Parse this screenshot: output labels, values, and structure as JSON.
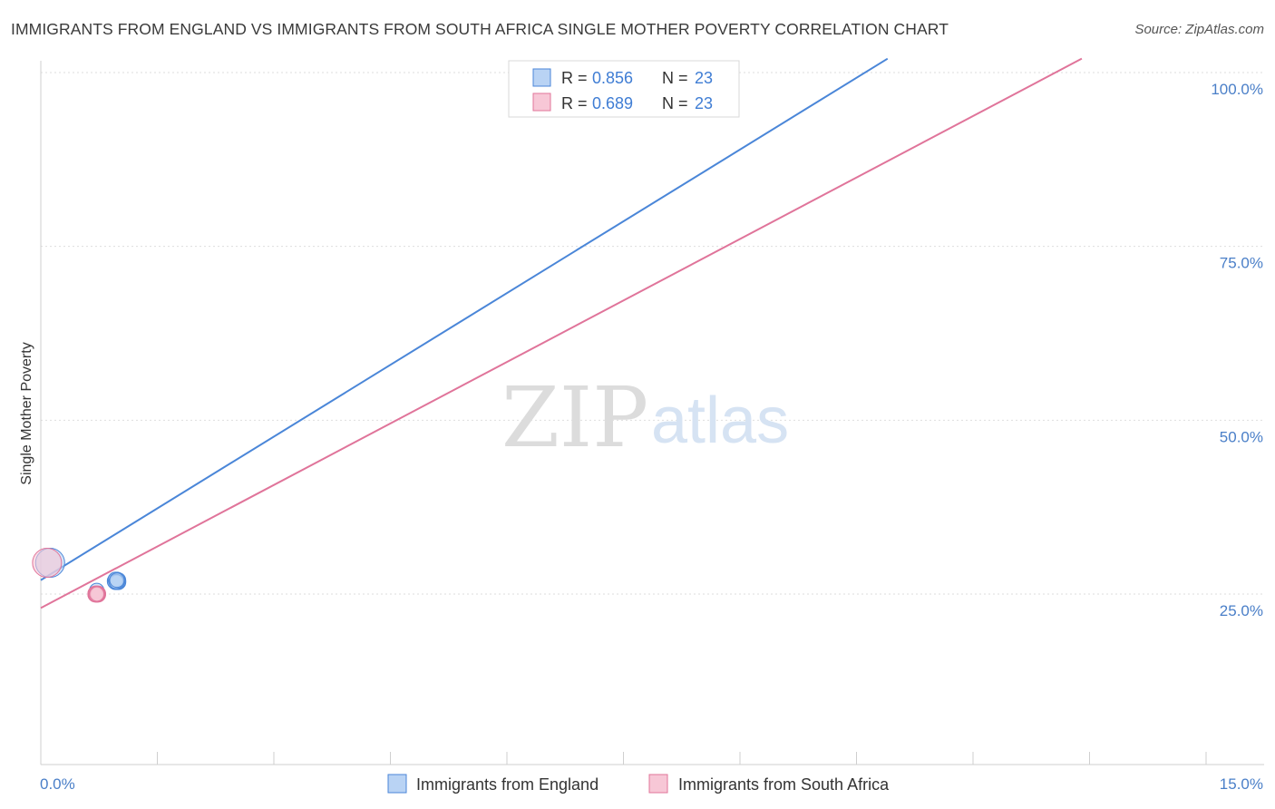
{
  "title": "IMMIGRANTS FROM ENGLAND VS IMMIGRANTS FROM SOUTH AFRICA SINGLE MOTHER POVERTY CORRELATION CHART",
  "source": "Source: ZipAtlas.com",
  "watermark": {
    "zip": "ZIP",
    "atlas": "atlas"
  },
  "chart_data": {
    "type": "scatter",
    "title": "IMMIGRANTS FROM ENGLAND VS IMMIGRANTS FROM SOUTH AFRICA SINGLE MOTHER POVERTY CORRELATION CHART",
    "ylabel": "Single Mother Poverty",
    "xlabel": "",
    "xlim": [
      0,
      15
    ],
    "ylim": [
      0,
      103
    ],
    "x_tick_labels": [
      "0.0%",
      "15.0%"
    ],
    "y_ticks": [
      25,
      50,
      75,
      100
    ],
    "y_tick_labels": [
      "25.0%",
      "50.0%",
      "75.0%",
      "100.0%"
    ],
    "grid": true,
    "legend_placement": "top-center",
    "series": [
      {
        "name": "Immigrants from England",
        "color": "#4a86d8",
        "fill": "#b9d3f4",
        "R": "0.856",
        "N": "23",
        "trend": {
          "x": [
            0,
            10.9
          ],
          "y": [
            27.0,
            102.0
          ]
        },
        "points": [
          {
            "x": 0.12,
            "y": 29.5,
            "big": true
          },
          {
            "x": 0.72,
            "y": 25.5
          },
          {
            "x": 0.98,
            "y": 26.8
          },
          {
            "x": 0.96,
            "y": 26.8
          },
          {
            "x": 0.96,
            "y": 27.0
          },
          {
            "x": 0.97,
            "y": 26.9
          },
          {
            "x": 0.98,
            "y": 27.1
          },
          {
            "x": 1.0,
            "y": 26.7
          },
          {
            "x": 0.97,
            "y": 26.8
          },
          {
            "x": 0.95,
            "y": 26.9
          },
          {
            "x": 0.99,
            "y": 26.8
          },
          {
            "x": 0.97,
            "y": 27.0
          },
          {
            "x": 1.0,
            "y": 27.0
          },
          {
            "x": 0.96,
            "y": 26.7
          },
          {
            "x": 0.98,
            "y": 26.9
          },
          {
            "x": 1.0,
            "y": 26.8
          },
          {
            "x": 0.97,
            "y": 27.0
          },
          {
            "x": 0.95,
            "y": 26.8
          },
          {
            "x": 0.99,
            "y": 26.9
          },
          {
            "x": 0.96,
            "y": 27.1
          },
          {
            "x": 0.98,
            "y": 26.7
          },
          {
            "x": 0.97,
            "y": 26.8
          },
          {
            "x": 0.98,
            "y": 27.0
          }
        ]
      },
      {
        "name": "Immigrants from South Africa",
        "color": "#e0749a",
        "fill": "#f7c7d6",
        "R": "0.689",
        "N": "23",
        "trend": {
          "x": [
            0,
            13.4
          ],
          "y": [
            23.0,
            102.0
          ]
        },
        "points": [
          {
            "x": 0.08,
            "y": 29.5,
            "big": true
          },
          {
            "x": 0.72,
            "y": 25.0
          },
          {
            "x": 0.7,
            "y": 25.0
          },
          {
            "x": 0.74,
            "y": 25.0
          },
          {
            "x": 0.71,
            "y": 25.0
          },
          {
            "x": 0.73,
            "y": 25.0
          },
          {
            "x": 0.72,
            "y": 25.1
          },
          {
            "x": 0.7,
            "y": 24.9
          },
          {
            "x": 0.74,
            "y": 25.1
          },
          {
            "x": 0.72,
            "y": 24.9
          },
          {
            "x": 0.71,
            "y": 25.1
          },
          {
            "x": 0.73,
            "y": 24.9
          },
          {
            "x": 0.72,
            "y": 25.0
          },
          {
            "x": 0.7,
            "y": 25.1
          },
          {
            "x": 0.74,
            "y": 24.9
          },
          {
            "x": 0.71,
            "y": 25.0
          },
          {
            "x": 0.73,
            "y": 25.1
          },
          {
            "x": 0.72,
            "y": 24.9
          },
          {
            "x": 0.7,
            "y": 25.0
          },
          {
            "x": 0.74,
            "y": 25.0
          },
          {
            "x": 0.71,
            "y": 24.9
          },
          {
            "x": 0.73,
            "y": 25.0
          },
          {
            "x": 0.72,
            "y": 25.0
          }
        ]
      }
    ]
  }
}
